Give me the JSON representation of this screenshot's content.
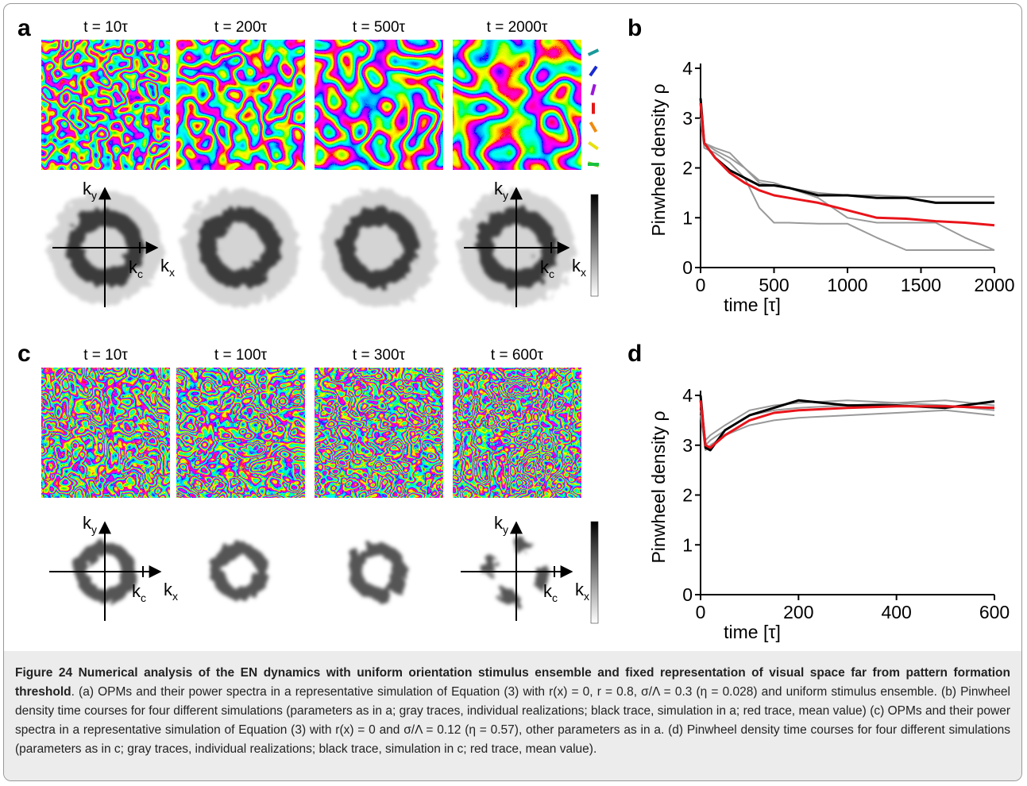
{
  "panels": {
    "a": {
      "label": "a",
      "times": [
        "t = 10τ",
        "t = 200τ",
        "t = 500τ",
        "t = 2000τ"
      ]
    },
    "c": {
      "label": "c",
      "times": [
        "t = 10τ",
        "t = 100τ",
        "t = 300τ",
        "t = 600τ"
      ]
    }
  },
  "spectrum_labels": {
    "ky": [
      "k",
      "y"
    ],
    "kx": [
      "k",
      "x"
    ],
    "kc": [
      "k",
      "c"
    ]
  },
  "chart_data": [
    {
      "type": "line",
      "label": "b",
      "ylabel": "Pinwheel density ρ",
      "xlabel": "time [τ]",
      "x": [
        0,
        25,
        100,
        200,
        300,
        400,
        500,
        600,
        800,
        1000,
        1200,
        1400,
        1600,
        1800,
        2000
      ],
      "xlim": [
        0,
        2000
      ],
      "xticks": [
        0,
        500,
        1000,
        1500,
        2000
      ],
      "ylim": [
        0,
        4
      ],
      "yticks": [
        0,
        1,
        2,
        3,
        4
      ],
      "series": [
        {
          "color": "#999999",
          "values": [
            3.0,
            2.5,
            2.4,
            2.3,
            2.0,
            1.7,
            1.65,
            1.6,
            1.5,
            1.45,
            1.45,
            1.42,
            1.42,
            1.42,
            1.42
          ]
        },
        {
          "color": "#999999",
          "values": [
            3.0,
            2.4,
            2.3,
            2.1,
            1.8,
            1.2,
            0.9,
            0.9,
            0.88,
            0.88,
            0.6,
            0.35,
            0.35,
            0.35,
            0.35
          ]
        },
        {
          "color": "#999999",
          "values": [
            3.0,
            2.5,
            2.35,
            2.2,
            2.0,
            1.75,
            1.7,
            1.6,
            1.4,
            1.0,
            0.9,
            0.9,
            0.9,
            0.6,
            0.35
          ]
        },
        {
          "color": "#000000",
          "values": [
            3.4,
            2.5,
            2.2,
            1.95,
            1.8,
            1.65,
            1.65,
            1.6,
            1.45,
            1.45,
            1.4,
            1.4,
            1.3,
            1.3,
            1.3
          ]
        },
        {
          "color": "#e8141a",
          "values": [
            3.3,
            2.5,
            2.2,
            1.9,
            1.7,
            1.55,
            1.45,
            1.4,
            1.3,
            1.15,
            1.0,
            0.98,
            0.93,
            0.9,
            0.85
          ]
        }
      ]
    },
    {
      "type": "line",
      "label": "d",
      "ylabel": "Pinwheel density ρ",
      "xlabel": "time [τ]",
      "x": [
        0,
        10,
        20,
        50,
        100,
        150,
        200,
        300,
        400,
        500,
        600
      ],
      "xlim": [
        0,
        600
      ],
      "xticks": [
        0,
        200,
        400,
        600
      ],
      "ylim": [
        0,
        4
      ],
      "yticks": [
        0,
        1,
        2,
        3,
        4
      ],
      "series": [
        {
          "color": "#999999",
          "values": [
            3.7,
            3.1,
            3.2,
            3.4,
            3.7,
            3.8,
            3.85,
            3.9,
            3.85,
            3.8,
            3.7
          ]
        },
        {
          "color": "#999999",
          "values": [
            3.6,
            2.9,
            3.0,
            3.2,
            3.4,
            3.5,
            3.55,
            3.6,
            3.65,
            3.7,
            3.6
          ]
        },
        {
          "color": "#999999",
          "values": [
            3.8,
            3.0,
            3.1,
            3.3,
            3.6,
            3.7,
            3.75,
            3.8,
            3.85,
            3.9,
            3.8
          ]
        },
        {
          "color": "#000000",
          "values": [
            4.0,
            2.95,
            2.9,
            3.3,
            3.6,
            3.75,
            3.9,
            3.8,
            3.8,
            3.75,
            3.88
          ]
        },
        {
          "color": "#e8141a",
          "values": [
            3.9,
            3.0,
            2.95,
            3.2,
            3.5,
            3.65,
            3.7,
            3.75,
            3.78,
            3.78,
            3.75
          ]
        }
      ]
    }
  ],
  "caption": {
    "title": "Figure 24 Numerical analysis of the EN dynamics with uniform orientation stimulus ensemble and fixed representation of visual space far from pattern formation threshold",
    "text": ". (a) OPMs and their power spectra in a representative simulation of Equation (3) with r(x) = 0, r = 0.8, σ/Λ = 0.3 (η = 0.028) and uniform stimulus ensemble. (b) Pinwheel density time courses for four different simulations (parameters as in a; gray traces, individual realizations; black trace, simulation in a; red trace, mean value) (c) OPMs and their power spectra in a representative simulation of Equation (3) with r(x) = 0 and σ/Λ = 0.12 (η = 0.57), other parameters as in a. (d) Pinwheel density time courses for four different simulations (parameters as in c; gray traces, individual realizations; black trace, simulation in c; red trace, mean value)."
  }
}
